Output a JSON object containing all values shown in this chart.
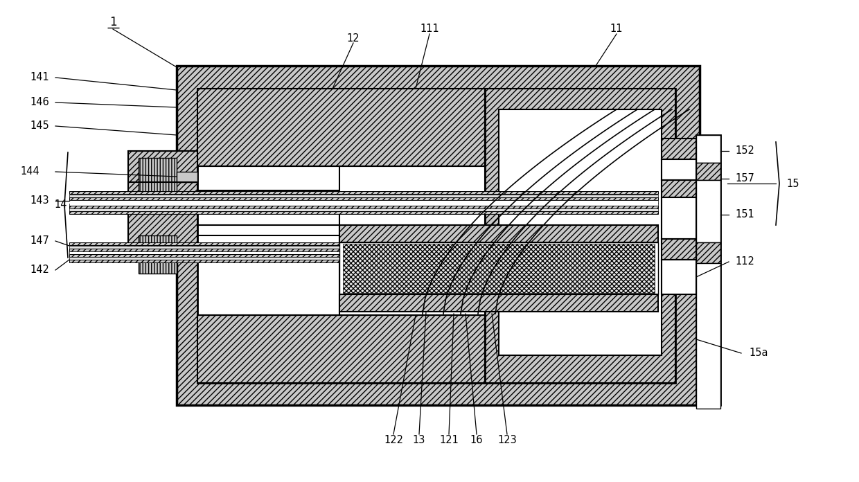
{
  "fig_width": 12.4,
  "fig_height": 6.96,
  "dpi": 100,
  "bg_color": "#ffffff"
}
